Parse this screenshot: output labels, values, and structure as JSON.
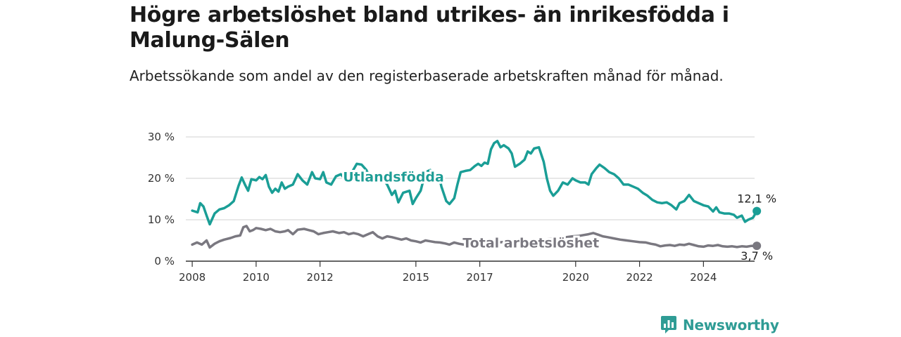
{
  "header": {
    "title": "Högre arbetslöshet bland utrikes- än inrikesfödda i Malung-Sälen",
    "subtitle": "Arbetssökande som andel av den registerbaserade arbetskraften månad för månad."
  },
  "brand": {
    "name": "Newsworthy",
    "icon": "newsworthy-logo-icon",
    "color": "#2f9c95"
  },
  "chart_data": {
    "type": "line",
    "title": "Högre arbetslöshet bland utrikes- än inrikesfödda i Malung-Sälen",
    "subtitle": "Arbetssökande som andel av den registerbaserade arbetskraften månad för månad.",
    "xlabel": "",
    "ylabel": "",
    "xlim": [
      2007.8,
      2025.6
    ],
    "ylim": [
      0,
      30
    ],
    "y_ticks": [
      0,
      10,
      20,
      30
    ],
    "y_tick_labels": [
      "0 %",
      "10 %",
      "20 %",
      "30 %"
    ],
    "x_ticks": [
      2008,
      2010,
      2012,
      2015,
      2017,
      2020,
      2022,
      2024
    ],
    "x_tick_labels": [
      "2008",
      "2010",
      "2012",
      "2015",
      "2017",
      "2020",
      "2022",
      "2024"
    ],
    "grid": "horizontal",
    "legend": "inline labels",
    "series": [
      {
        "name": "Utlandsfödda",
        "color": "#1a9e96",
        "end_label": "12,1 %",
        "points": [
          [
            2008.0,
            12.2
          ],
          [
            2008.17,
            11.8
          ],
          [
            2008.25,
            14.0
          ],
          [
            2008.35,
            13.2
          ],
          [
            2008.45,
            11.0
          ],
          [
            2008.55,
            8.9
          ],
          [
            2008.7,
            11.5
          ],
          [
            2008.85,
            12.5
          ],
          [
            2009.0,
            12.8
          ],
          [
            2009.15,
            13.5
          ],
          [
            2009.3,
            14.5
          ],
          [
            2009.45,
            18.2
          ],
          [
            2009.55,
            20.2
          ],
          [
            2009.65,
            18.5
          ],
          [
            2009.75,
            17.0
          ],
          [
            2009.85,
            19.8
          ],
          [
            2010.0,
            19.5
          ],
          [
            2010.1,
            20.3
          ],
          [
            2010.2,
            19.8
          ],
          [
            2010.3,
            20.8
          ],
          [
            2010.4,
            18.0
          ],
          [
            2010.5,
            16.5
          ],
          [
            2010.6,
            17.5
          ],
          [
            2010.7,
            16.8
          ],
          [
            2010.8,
            19.0
          ],
          [
            2010.9,
            17.5
          ],
          [
            2011.0,
            18.0
          ],
          [
            2011.15,
            18.5
          ],
          [
            2011.3,
            21.0
          ],
          [
            2011.45,
            19.5
          ],
          [
            2011.6,
            18.5
          ],
          [
            2011.75,
            21.5
          ],
          [
            2011.85,
            20.0
          ],
          [
            2012.0,
            19.8
          ],
          [
            2012.1,
            21.5
          ],
          [
            2012.2,
            19.0
          ],
          [
            2012.35,
            18.5
          ],
          [
            2012.5,
            20.5
          ],
          [
            2012.65,
            21.0
          ],
          [
            2012.85,
            19.2
          ],
          [
            2013.0,
            21.5
          ],
          [
            2013.15,
            23.5
          ],
          [
            2013.3,
            23.3
          ],
          [
            2013.45,
            22.0
          ],
          [
            2013.6,
            19.5
          ],
          [
            2013.7,
            21.0
          ],
          [
            2013.9,
            20.5
          ],
          [
            2014.1,
            18.5
          ],
          [
            2014.25,
            16.0
          ],
          [
            2014.35,
            17.0
          ],
          [
            2014.45,
            14.2
          ],
          [
            2014.6,
            16.5
          ],
          [
            2014.8,
            17.0
          ],
          [
            2014.9,
            13.8
          ],
          [
            2015.0,
            15.2
          ],
          [
            2015.15,
            17.0
          ],
          [
            2015.3,
            21.5
          ],
          [
            2015.45,
            22.0
          ],
          [
            2015.55,
            21.0
          ],
          [
            2015.7,
            21.2
          ],
          [
            2015.8,
            18.0
          ],
          [
            2015.95,
            14.5
          ],
          [
            2016.05,
            13.8
          ],
          [
            2016.2,
            15.2
          ],
          [
            2016.3,
            18.5
          ],
          [
            2016.4,
            21.5
          ],
          [
            2016.55,
            21.8
          ],
          [
            2016.7,
            22.0
          ],
          [
            2016.85,
            23.0
          ],
          [
            2016.95,
            23.5
          ],
          [
            2017.05,
            23.0
          ],
          [
            2017.15,
            23.8
          ],
          [
            2017.25,
            23.5
          ],
          [
            2017.35,
            27.0
          ],
          [
            2017.45,
            28.5
          ],
          [
            2017.55,
            29.0
          ],
          [
            2017.65,
            27.5
          ],
          [
            2017.75,
            28.0
          ],
          [
            2017.9,
            27.2
          ],
          [
            2018.0,
            26.0
          ],
          [
            2018.1,
            22.8
          ],
          [
            2018.25,
            23.5
          ],
          [
            2018.4,
            24.5
          ],
          [
            2018.5,
            26.5
          ],
          [
            2018.6,
            26.0
          ],
          [
            2018.7,
            27.2
          ],
          [
            2018.85,
            27.5
          ],
          [
            2019.0,
            24.0
          ],
          [
            2019.1,
            20.0
          ],
          [
            2019.2,
            17.0
          ],
          [
            2019.3,
            15.8
          ],
          [
            2019.45,
            17.0
          ],
          [
            2019.6,
            19.0
          ],
          [
            2019.75,
            18.5
          ],
          [
            2019.9,
            20.0
          ],
          [
            2020.0,
            19.5
          ],
          [
            2020.15,
            19.0
          ],
          [
            2020.3,
            19.0
          ],
          [
            2020.4,
            18.5
          ],
          [
            2020.5,
            21.0
          ],
          [
            2020.65,
            22.5
          ],
          [
            2020.75,
            23.3
          ],
          [
            2020.9,
            22.5
          ],
          [
            2021.05,
            21.5
          ],
          [
            2021.2,
            21.0
          ],
          [
            2021.35,
            20.0
          ],
          [
            2021.5,
            18.5
          ],
          [
            2021.65,
            18.5
          ],
          [
            2021.8,
            18.0
          ],
          [
            2021.95,
            17.5
          ],
          [
            2022.1,
            16.5
          ],
          [
            2022.25,
            15.8
          ],
          [
            2022.4,
            14.8
          ],
          [
            2022.55,
            14.2
          ],
          [
            2022.7,
            14.0
          ],
          [
            2022.85,
            14.2
          ],
          [
            2023.0,
            13.5
          ],
          [
            2023.15,
            12.5
          ],
          [
            2023.25,
            14.0
          ],
          [
            2023.4,
            14.5
          ],
          [
            2023.55,
            16.0
          ],
          [
            2023.7,
            14.5
          ],
          [
            2023.85,
            14.0
          ],
          [
            2024.0,
            13.5
          ],
          [
            2024.15,
            13.2
          ],
          [
            2024.3,
            12.0
          ],
          [
            2024.4,
            13.0
          ],
          [
            2024.5,
            11.8
          ],
          [
            2024.65,
            11.5
          ],
          [
            2024.8,
            11.5
          ],
          [
            2024.95,
            11.2
          ],
          [
            2025.05,
            10.5
          ],
          [
            2025.2,
            11.0
          ],
          [
            2025.3,
            9.5
          ],
          [
            2025.4,
            10.0
          ],
          [
            2025.55,
            10.5
          ],
          [
            2025.67,
            12.1
          ]
        ]
      },
      {
        "name": "Total arbetslöshet",
        "color": "#7a7880",
        "end_label": "3,7 %",
        "points": [
          [
            2008.0,
            4.0
          ],
          [
            2008.15,
            4.5
          ],
          [
            2008.3,
            4.0
          ],
          [
            2008.45,
            5.0
          ],
          [
            2008.55,
            3.3
          ],
          [
            2008.7,
            4.2
          ],
          [
            2008.85,
            4.8
          ],
          [
            2009.0,
            5.2
          ],
          [
            2009.2,
            5.6
          ],
          [
            2009.35,
            6.0
          ],
          [
            2009.5,
            6.2
          ],
          [
            2009.6,
            8.2
          ],
          [
            2009.7,
            8.5
          ],
          [
            2009.8,
            7.2
          ],
          [
            2009.9,
            7.5
          ],
          [
            2010.0,
            8.0
          ],
          [
            2010.15,
            7.8
          ],
          [
            2010.3,
            7.5
          ],
          [
            2010.45,
            7.8
          ],
          [
            2010.6,
            7.2
          ],
          [
            2010.75,
            7.0
          ],
          [
            2010.9,
            7.2
          ],
          [
            2011.0,
            7.5
          ],
          [
            2011.15,
            6.5
          ],
          [
            2011.3,
            7.6
          ],
          [
            2011.5,
            7.8
          ],
          [
            2011.65,
            7.5
          ],
          [
            2011.8,
            7.2
          ],
          [
            2011.95,
            6.5
          ],
          [
            2012.1,
            6.8
          ],
          [
            2012.25,
            7.0
          ],
          [
            2012.4,
            7.2
          ],
          [
            2012.6,
            6.8
          ],
          [
            2012.75,
            7.0
          ],
          [
            2012.9,
            6.5
          ],
          [
            2013.05,
            6.8
          ],
          [
            2013.2,
            6.5
          ],
          [
            2013.35,
            6.0
          ],
          [
            2013.5,
            6.5
          ],
          [
            2013.65,
            7.0
          ],
          [
            2013.8,
            6.0
          ],
          [
            2013.95,
            5.5
          ],
          [
            2014.1,
            6.0
          ],
          [
            2014.25,
            5.8
          ],
          [
            2014.4,
            5.5
          ],
          [
            2014.55,
            5.2
          ],
          [
            2014.7,
            5.5
          ],
          [
            2014.85,
            5.0
          ],
          [
            2015.0,
            4.8
          ],
          [
            2015.15,
            4.5
          ],
          [
            2015.3,
            5.0
          ],
          [
            2015.45,
            4.8
          ],
          [
            2015.6,
            4.6
          ],
          [
            2015.75,
            4.5
          ],
          [
            2015.9,
            4.3
          ],
          [
            2016.05,
            4.0
          ],
          [
            2016.2,
            4.5
          ],
          [
            2016.35,
            4.2
          ],
          [
            2016.5,
            4.0
          ],
          [
            2016.65,
            3.8
          ],
          [
            2016.8,
            4.5
          ],
          [
            2016.95,
            4.3
          ],
          [
            2017.1,
            4.0
          ],
          [
            2017.3,
            4.2
          ],
          [
            2017.5,
            4.5
          ],
          [
            2017.7,
            4.6
          ],
          [
            2017.9,
            4.7
          ],
          [
            2018.1,
            4.8
          ],
          [
            2018.3,
            4.9
          ],
          [
            2018.5,
            5.0
          ],
          [
            2018.7,
            5.1
          ],
          [
            2018.9,
            5.2
          ],
          [
            2019.1,
            5.3
          ],
          [
            2019.3,
            5.4
          ],
          [
            2019.5,
            5.6
          ],
          [
            2019.7,
            5.8
          ],
          [
            2019.9,
            6.0
          ],
          [
            2020.1,
            6.1
          ],
          [
            2020.25,
            6.3
          ],
          [
            2020.4,
            6.5
          ],
          [
            2020.55,
            6.8
          ],
          [
            2020.7,
            6.4
          ],
          [
            2020.85,
            6.0
          ],
          [
            2021.0,
            5.8
          ],
          [
            2021.2,
            5.5
          ],
          [
            2021.4,
            5.2
          ],
          [
            2021.6,
            5.0
          ],
          [
            2021.8,
            4.8
          ],
          [
            2022.0,
            4.6
          ],
          [
            2022.2,
            4.5
          ],
          [
            2022.35,
            4.2
          ],
          [
            2022.5,
            4.0
          ],
          [
            2022.65,
            3.6
          ],
          [
            2022.8,
            3.8
          ],
          [
            2022.95,
            3.9
          ],
          [
            2023.1,
            3.7
          ],
          [
            2023.25,
            4.0
          ],
          [
            2023.4,
            3.9
          ],
          [
            2023.55,
            4.2
          ],
          [
            2023.7,
            3.9
          ],
          [
            2023.85,
            3.6
          ],
          [
            2024.0,
            3.5
          ],
          [
            2024.15,
            3.8
          ],
          [
            2024.3,
            3.7
          ],
          [
            2024.45,
            3.9
          ],
          [
            2024.6,
            3.6
          ],
          [
            2024.75,
            3.5
          ],
          [
            2024.9,
            3.6
          ],
          [
            2025.05,
            3.4
          ],
          [
            2025.2,
            3.6
          ],
          [
            2025.35,
            3.5
          ],
          [
            2025.5,
            3.7
          ],
          [
            2025.67,
            3.7
          ]
        ]
      }
    ]
  }
}
